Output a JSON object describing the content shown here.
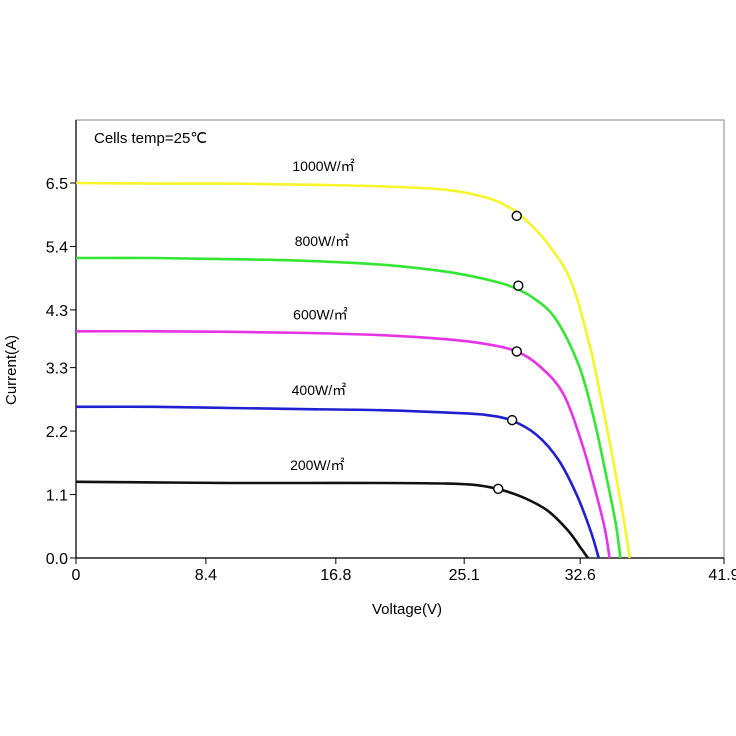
{
  "chart_data": {
    "type": "line",
    "annotation": "Cells temp=25℃",
    "xlabel": "Voltage(V)",
    "ylabel": "Current(A)",
    "x_ticks": [
      "0",
      "8.4",
      "16.8",
      "25.1",
      "32.6",
      "41.9"
    ],
    "y_ticks": [
      "0.0",
      "1.1",
      "2.2",
      "3.3",
      "4.3",
      "5.4",
      "6.5"
    ],
    "xlim": [
      0,
      41.9
    ],
    "ylim": [
      0,
      7.0
    ],
    "grid": false,
    "legend": "none",
    "series": [
      {
        "name": "1000W/㎡",
        "color": "#f5f52a",
        "points": [
          [
            0,
            6.5
          ],
          [
            5,
            6.49
          ],
          [
            10,
            6.49
          ],
          [
            15,
            6.47
          ],
          [
            20,
            6.44
          ],
          [
            24,
            6.38
          ],
          [
            26.5,
            6.25
          ],
          [
            28,
            6.08
          ],
          [
            29,
            5.88
          ],
          [
            30.5,
            5.45
          ],
          [
            32,
            4.8
          ],
          [
            33.2,
            3.7
          ],
          [
            34,
            2.7
          ],
          [
            34.8,
            1.6
          ],
          [
            35.4,
            0.7
          ],
          [
            35.8,
            0
          ]
        ],
        "mpp": [
          28.5,
          5.93
        ]
      },
      {
        "name": "800W/㎡",
        "color": "#33e633",
        "points": [
          [
            0,
            5.2
          ],
          [
            5,
            5.2
          ],
          [
            10,
            5.18
          ],
          [
            15,
            5.15
          ],
          [
            20,
            5.08
          ],
          [
            24,
            4.96
          ],
          [
            26.5,
            4.83
          ],
          [
            28,
            4.72
          ],
          [
            29.5,
            4.52
          ],
          [
            31,
            4.15
          ],
          [
            32.5,
            3.35
          ],
          [
            33.5,
            2.4
          ],
          [
            34.3,
            1.4
          ],
          [
            34.9,
            0.6
          ],
          [
            35.2,
            0
          ]
        ],
        "mpp": [
          28.6,
          4.72
        ]
      },
      {
        "name": "600W/㎡",
        "color": "#e633e6",
        "points": [
          [
            0,
            3.93
          ],
          [
            5,
            3.93
          ],
          [
            10,
            3.92
          ],
          [
            15,
            3.9
          ],
          [
            20,
            3.86
          ],
          [
            24,
            3.79
          ],
          [
            26.5,
            3.71
          ],
          [
            28.5,
            3.58
          ],
          [
            30,
            3.32
          ],
          [
            31.5,
            2.85
          ],
          [
            32.7,
            2.0
          ],
          [
            33.6,
            1.15
          ],
          [
            34.2,
            0.5
          ],
          [
            34.5,
            0
          ]
        ],
        "mpp": [
          28.5,
          3.58
        ]
      },
      {
        "name": "400W/㎡",
        "color": "#2020d0",
        "points": [
          [
            0,
            2.62
          ],
          [
            5,
            2.62
          ],
          [
            10,
            2.6
          ],
          [
            15,
            2.58
          ],
          [
            20,
            2.56
          ],
          [
            24,
            2.52
          ],
          [
            26.5,
            2.48
          ],
          [
            28.2,
            2.38
          ],
          [
            29.8,
            2.13
          ],
          [
            31.2,
            1.7
          ],
          [
            32.4,
            1.08
          ],
          [
            33.3,
            0.45
          ],
          [
            33.8,
            0
          ]
        ],
        "mpp": [
          28.2,
          2.39
        ]
      },
      {
        "name": "200W/㎡",
        "color": "#111111",
        "points": [
          [
            0,
            1.32
          ],
          [
            5,
            1.31
          ],
          [
            10,
            1.3
          ],
          [
            15,
            1.3
          ],
          [
            20,
            1.3
          ],
          [
            24,
            1.29
          ],
          [
            26,
            1.26
          ],
          [
            27.5,
            1.18
          ],
          [
            29,
            1.04
          ],
          [
            30.5,
            0.82
          ],
          [
            31.8,
            0.48
          ],
          [
            32.7,
            0.15
          ],
          [
            33.1,
            0
          ]
        ],
        "mpp": [
          27.3,
          1.2
        ]
      }
    ]
  }
}
